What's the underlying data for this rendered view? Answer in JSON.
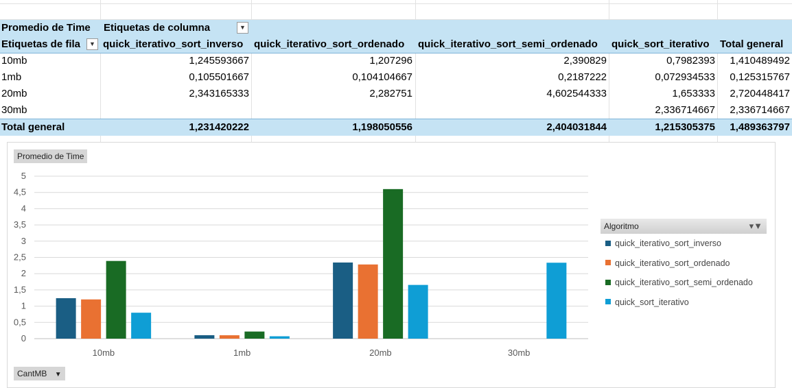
{
  "pivot": {
    "value_label": "Promedio de Time",
    "column_labels": "Etiquetas de columna",
    "row_labels": "Etiquetas de fila",
    "columns": [
      "quick_iterativo_sort_inverso",
      "quick_iterativo_sort_ordenado",
      "quick_iterativo_sort_semi_ordenado",
      "quick_sort_iterativo",
      "Total general"
    ],
    "rows": [
      {
        "label": "10mb",
        "values": [
          "1,245593667",
          "1,207296",
          "2,390829",
          "0,7982393",
          "1,410489492"
        ]
      },
      {
        "label": "1mb",
        "values": [
          "0,105501667",
          "0,104104667",
          "0,2187222",
          "0,072934533",
          "0,125315767"
        ]
      },
      {
        "label": "20mb",
        "values": [
          "2,343165333",
          "2,282751",
          "4,602544333",
          "1,653333",
          "2,720448417"
        ]
      },
      {
        "label": "30mb",
        "values": [
          "",
          "",
          "",
          "2,336714667",
          "2,336714667"
        ]
      }
    ],
    "total": {
      "label": "Total general",
      "values": [
        "1,231420222",
        "1,198050556",
        "2,404031844",
        "1,215305375",
        "1,489363797"
      ]
    }
  },
  "chart_data": {
    "type": "bar",
    "title": "",
    "value_field_button": "Promedio de Time",
    "axis_field_button": "CantMB",
    "legend_field_button": "Algoritmo",
    "categories": [
      "10mb",
      "1mb",
      "20mb",
      "30mb"
    ],
    "ylim": [
      0,
      5
    ],
    "yticks": [
      0,
      0.5,
      1,
      1.5,
      2,
      2.5,
      3,
      3.5,
      4,
      4.5,
      5
    ],
    "ytick_labels": [
      "0",
      "0,5",
      "1",
      "1,5",
      "2",
      "2,5",
      "3",
      "3,5",
      "4",
      "4,5",
      "5"
    ],
    "grid": true,
    "legend_position": "right",
    "series": [
      {
        "name": "quick_iterativo_sort_inverso",
        "color": "#1a5e84",
        "values": [
          1.245593667,
          0.105501667,
          2.343165333,
          null
        ]
      },
      {
        "name": "quick_iterativo_sort_ordenado",
        "color": "#e97132",
        "values": [
          1.207296,
          0.104104667,
          2.282751,
          null
        ]
      },
      {
        "name": "quick_iterativo_sort_semi_ordenado",
        "color": "#196b24",
        "values": [
          2.390829,
          0.2187222,
          4.602544333,
          null
        ]
      },
      {
        "name": "quick_sort_iterativo",
        "color": "#0f9ed5",
        "values": [
          0.7982393,
          0.072934533,
          1.653333,
          2.336714667
        ]
      }
    ]
  }
}
